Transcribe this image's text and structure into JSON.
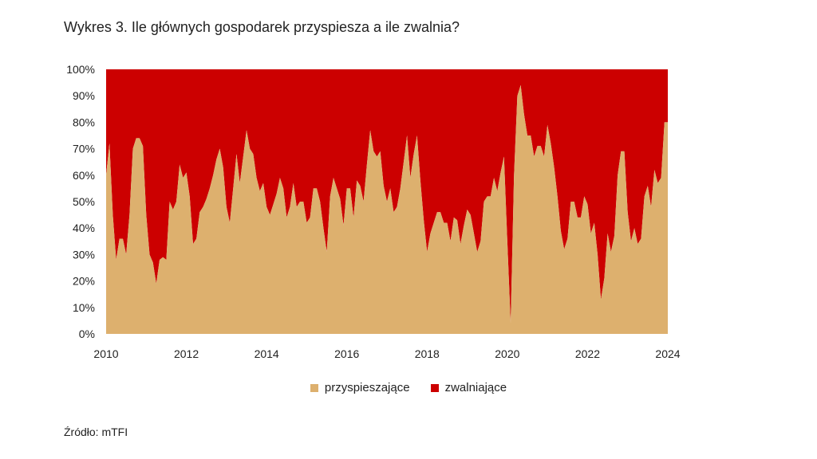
{
  "title": "Wykres 3. Ile głównych gospodarek przyspiesza a ile zwalnia?",
  "source": "Źródło: mTFI",
  "colors": {
    "accelerating": "#DDB06E",
    "decelerating": "#CC0000"
  },
  "chart_data": {
    "type": "area",
    "stacked": true,
    "title": "Wykres 3. Ile głównych gospodarek przyspiesza a ile zwalnia?",
    "xlabel": "",
    "ylabel": "",
    "xlim": [
      2010,
      2024
    ],
    "ylim": [
      0,
      100
    ],
    "x_ticks": [
      "2010",
      "2012",
      "2014",
      "2016",
      "2018",
      "2020",
      "2022",
      "2024"
    ],
    "y_ticks": [
      "0%",
      "10%",
      "20%",
      "30%",
      "40%",
      "50%",
      "60%",
      "70%",
      "80%",
      "90%",
      "100%"
    ],
    "grid": false,
    "legend_position": "bottom",
    "x": [
      2010.0,
      2010.083,
      2010.167,
      2010.25,
      2010.333,
      2010.417,
      2010.5,
      2010.583,
      2010.667,
      2010.75,
      2010.833,
      2010.917,
      2011.0,
      2011.083,
      2011.167,
      2011.25,
      2011.333,
      2011.417,
      2011.5,
      2011.583,
      2011.667,
      2011.75,
      2011.833,
      2011.917,
      2012.0,
      2012.083,
      2012.167,
      2012.25,
      2012.333,
      2012.417,
      2012.5,
      2012.583,
      2012.667,
      2012.75,
      2012.833,
      2012.917,
      2013.0,
      2013.083,
      2013.167,
      2013.25,
      2013.333,
      2013.417,
      2013.5,
      2013.583,
      2013.667,
      2013.75,
      2013.833,
      2013.917,
      2014.0,
      2014.083,
      2014.167,
      2014.25,
      2014.333,
      2014.417,
      2014.5,
      2014.583,
      2014.667,
      2014.75,
      2014.833,
      2014.917,
      2015.0,
      2015.083,
      2015.167,
      2015.25,
      2015.333,
      2015.417,
      2015.5,
      2015.583,
      2015.667,
      2015.75,
      2015.833,
      2015.917,
      2016.0,
      2016.083,
      2016.167,
      2016.25,
      2016.333,
      2016.417,
      2016.5,
      2016.583,
      2016.667,
      2016.75,
      2016.833,
      2016.917,
      2017.0,
      2017.083,
      2017.167,
      2017.25,
      2017.333,
      2017.417,
      2017.5,
      2017.583,
      2017.667,
      2017.75,
      2017.833,
      2017.917,
      2018.0,
      2018.083,
      2018.167,
      2018.25,
      2018.333,
      2018.417,
      2018.5,
      2018.583,
      2018.667,
      2018.75,
      2018.833,
      2018.917,
      2019.0,
      2019.083,
      2019.167,
      2019.25,
      2019.333,
      2019.417,
      2019.5,
      2019.583,
      2019.667,
      2019.75,
      2019.833,
      2019.917,
      2020.0,
      2020.083,
      2020.167,
      2020.25,
      2020.333,
      2020.417,
      2020.5,
      2020.583,
      2020.667,
      2020.75,
      2020.833,
      2020.917,
      2021.0,
      2021.083,
      2021.167,
      2021.25,
      2021.333,
      2021.417,
      2021.5,
      2021.583,
      2021.667,
      2021.75,
      2021.833,
      2021.917,
      2022.0,
      2022.083,
      2022.167,
      2022.25,
      2022.333,
      2022.417,
      2022.5,
      2022.583,
      2022.667,
      2022.75,
      2022.833,
      2022.917,
      2023.0,
      2023.083,
      2023.167,
      2023.25,
      2023.333,
      2023.417,
      2023.5,
      2023.583,
      2023.667,
      2023.75,
      2023.833,
      2023.917,
      2024.0
    ],
    "series": [
      {
        "name": "przyspieszające",
        "values": [
          60,
          72,
          45,
          28,
          36,
          36,
          30,
          45,
          70,
          74,
          74,
          71,
          45,
          30,
          27,
          19,
          28,
          29,
          28,
          50,
          47,
          50,
          64,
          59,
          61,
          52,
          34,
          36,
          46,
          48,
          51,
          55,
          60,
          66,
          70,
          63,
          48,
          42,
          55,
          68,
          57,
          67,
          77,
          70,
          68,
          59,
          54,
          57,
          48,
          45,
          49,
          53,
          59,
          55,
          44,
          48,
          57,
          48,
          50,
          50,
          42,
          44,
          55,
          55,
          50,
          40,
          31,
          52,
          59,
          55,
          51,
          41,
          55,
          55,
          44,
          58,
          56,
          50,
          64,
          77,
          69,
          67,
          69,
          56,
          50,
          55,
          46,
          48,
          55,
          65,
          75,
          59,
          68,
          75,
          58,
          43,
          31,
          38,
          42,
          46,
          46,
          42,
          42,
          35,
          44,
          43,
          34,
          41,
          47,
          45,
          38,
          31,
          35,
          50,
          52,
          52,
          59,
          54,
          61,
          67,
          35,
          4,
          60,
          90,
          94,
          83,
          75,
          75,
          67,
          71,
          71,
          67,
          79,
          72,
          63,
          52,
          39,
          32,
          36,
          50,
          50,
          44,
          44,
          52,
          49,
          38,
          42,
          30,
          13,
          21,
          38,
          31,
          37,
          60,
          69,
          69,
          46,
          35,
          40,
          34,
          36,
          52,
          56,
          48,
          62,
          57,
          59,
          80,
          80
        ]
      },
      {
        "name": "zwalniające",
        "values": [
          40,
          28,
          55,
          72,
          64,
          64,
          70,
          55,
          30,
          26,
          26,
          29,
          55,
          70,
          73,
          81,
          72,
          71,
          72,
          50,
          53,
          50,
          36,
          41,
          39,
          48,
          66,
          64,
          54,
          52,
          49,
          45,
          40,
          34,
          30,
          37,
          52,
          58,
          45,
          32,
          43,
          33,
          23,
          30,
          32,
          41,
          46,
          43,
          52,
          55,
          51,
          47,
          41,
          45,
          56,
          52,
          43,
          52,
          50,
          50,
          58,
          56,
          45,
          45,
          50,
          60,
          69,
          48,
          41,
          45,
          49,
          59,
          45,
          45,
          56,
          42,
          44,
          50,
          36,
          23,
          31,
          33,
          31,
          44,
          50,
          45,
          54,
          52,
          45,
          35,
          25,
          41,
          32,
          25,
          42,
          57,
          69,
          62,
          58,
          54,
          54,
          58,
          58,
          65,
          56,
          57,
          66,
          59,
          53,
          55,
          62,
          69,
          65,
          50,
          48,
          48,
          41,
          46,
          39,
          33,
          65,
          96,
          40,
          10,
          6,
          17,
          25,
          25,
          33,
          29,
          29,
          33,
          21,
          28,
          37,
          48,
          61,
          68,
          64,
          50,
          50,
          56,
          56,
          48,
          51,
          62,
          58,
          70,
          87,
          79,
          62,
          69,
          63,
          40,
          31,
          31,
          54,
          65,
          60,
          66,
          64,
          48,
          44,
          52,
          38,
          43,
          41,
          20,
          20
        ]
      }
    ]
  }
}
